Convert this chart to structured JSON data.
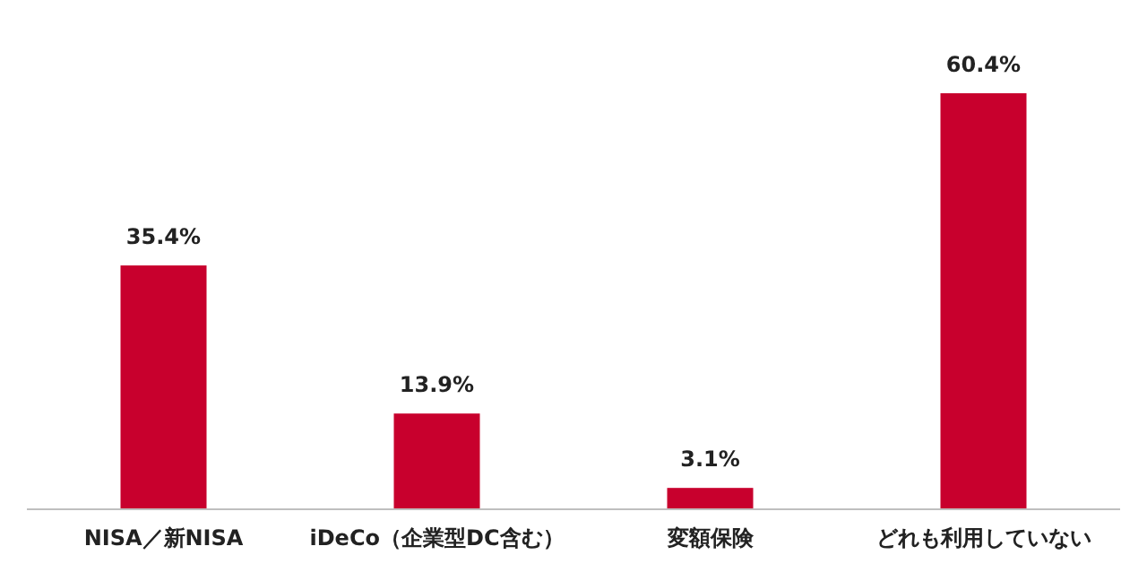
{
  "chart_data": {
    "type": "bar",
    "categories": [
      "NISA／新NISA",
      "iDeCo（企業型DC含む）",
      "変額保険",
      "どれも利用していない"
    ],
    "values": [
      35.4,
      13.9,
      3.1,
      60.4
    ],
    "value_labels": [
      "35.4%",
      "13.9%",
      "3.1%",
      "60.4%"
    ],
    "color": "#c8002d"
  }
}
